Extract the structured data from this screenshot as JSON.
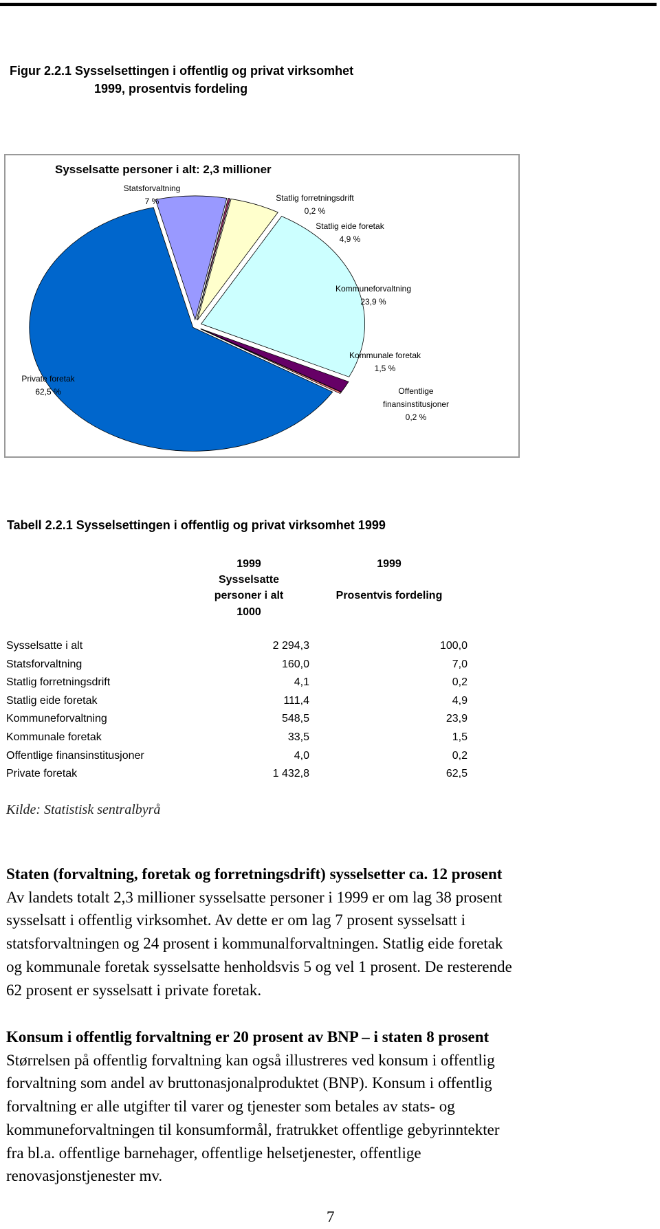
{
  "figure_caption": [
    "Figur 2.2.1 Sysselsettingen i offentlig og privat virksomhet",
    "1999, prosentvis fordeling"
  ],
  "chart_data": {
    "type": "pie",
    "title": "Sysselsatte personer i alt: 2,3 millioner",
    "categories": [
      "Statsforvaltning",
      "Statlig forretningsdrift",
      "Statlig eide foretak",
      "Kommuneforvaltning",
      "Kommunale foretak",
      "Offentlige finansinstitusjoner",
      "Private foretak"
    ],
    "values": [
      7,
      0.2,
      4.9,
      23.9,
      1.5,
      0.2,
      62.5
    ],
    "value_labels": [
      "7 %",
      "0,2 %",
      "4,9 %",
      "23,9 %",
      "1,5 %",
      "0,2 %",
      "62,5 %"
    ],
    "colors": [
      "#9999ff",
      "#993366",
      "#ffffcc",
      "#ccffff",
      "#660066",
      "#ff8080",
      "#0066cc"
    ]
  },
  "table": {
    "title": "Tabell 2.2.1 Sysselsettingen i offentlig og privat  virksomhet 1999",
    "headers": [
      [
        "1999",
        "Sysselsatte",
        "personer i alt",
        "1000"
      ],
      [
        "1999",
        "Prosentvis fordeling"
      ]
    ],
    "rows": [
      [
        "Sysselsatte i alt",
        "2 294,3",
        "100,0"
      ],
      [
        "Statsforvaltning",
        "160,0",
        "7,0"
      ],
      [
        "Statlig forretningsdrift",
        "4,1",
        "0,2"
      ],
      [
        "Statlig eide foretak",
        "111,4",
        "4,9"
      ],
      [
        "Kommuneforvaltning",
        "548,5",
        "23,9"
      ],
      [
        "Kommunale foretak",
        "33,5",
        "1,5"
      ],
      [
        "Offentlige finansinstitusjoner",
        "4,0",
        "0,2"
      ],
      [
        "Private foretak",
        "1 432,8",
        "62,5"
      ]
    ]
  },
  "source": "Kilde: Statistisk sentralbyrå",
  "paragraphs": [
    {
      "heading": "Staten (forvaltning, foretak og forretningsdrift) sysselsetter ca. 12 prosent",
      "lines": [
        "Av landets totalt 2,3 millioner sysselsatte personer i 1999  er om lag 38 prosent",
        "sysselsatt i offentlig virksomhet. Av dette er om lag 7 prosent sysselsatt i",
        "statsforvaltningen og 24 prosent i kommunalforvaltningen. Statlig eide foretak",
        "og kommunale foretak sysselsatte henholdsvis 5 og vel 1 prosent. De resterende",
        "62 prosent er sysselsatt i private foretak."
      ]
    },
    {
      "heading": "Konsum i offentlig forvaltning er 20 prosent av BNP – i staten 8 prosent",
      "lines": [
        "Størrelsen på offentlig forvaltning kan også illustreres ved konsum i offentlig",
        "forvaltning som andel av bruttonasjonalproduktet (BNP). Konsum i offentlig",
        "forvaltning er alle utgifter til varer og tjenester som betales av stats- og",
        "kommuneforvaltningen til konsumformål, fratrukket offentlige gebyrinntekter",
        "fra bl.a. offentlige barnehager, offentlige helsetjenester, offentlige",
        "renovasjonstjenester mv."
      ]
    }
  ],
  "page_number": "7"
}
